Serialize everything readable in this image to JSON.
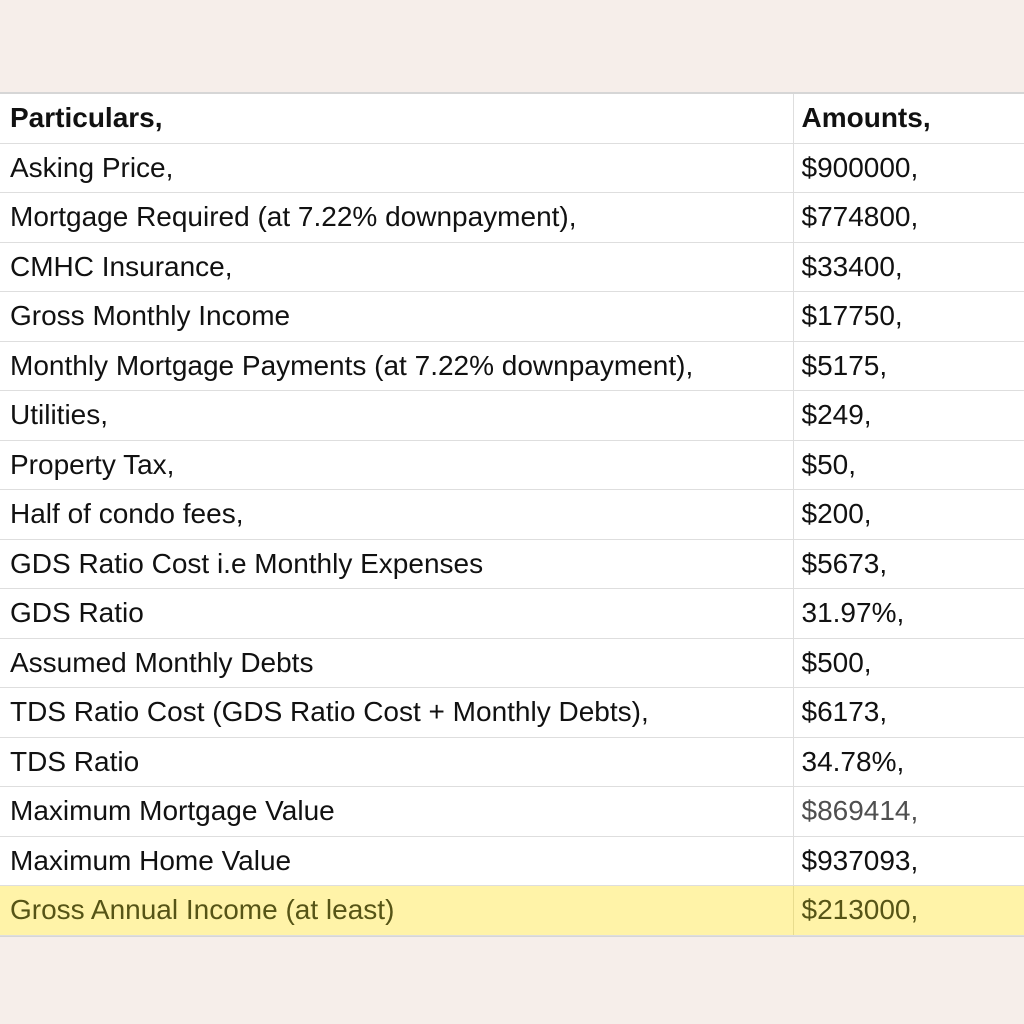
{
  "table": {
    "header": {
      "particulars": "Particulars,",
      "amounts": "Amounts,"
    },
    "rows": [
      {
        "particular": "Asking Price,",
        "amount": "$900000,"
      },
      {
        "particular": "Mortgage Required (at 7.22% downpayment),",
        "amount": "$774800,"
      },
      {
        "particular": "CMHC Insurance,",
        "amount": "$33400,"
      },
      {
        "particular": "Gross Monthly Income",
        "amount": "$17750,"
      },
      {
        "particular": "Monthly Mortgage Payments (at 7.22% downpayment),",
        "amount": "$5175,"
      },
      {
        "particular": "Utilities,",
        "amount": "$249,"
      },
      {
        "particular": "Property Tax,",
        "amount": "$50,"
      },
      {
        "particular": "Half of condo fees,",
        "amount": "$200,"
      },
      {
        "particular": "GDS Ratio Cost i.e Monthly Expenses",
        "amount": "$5673,"
      },
      {
        "particular": "GDS Ratio",
        "amount": "31.97%,"
      },
      {
        "particular": "Assumed Monthly Debts",
        "amount": "$500,"
      },
      {
        "particular": "TDS Ratio Cost (GDS Ratio Cost + Monthly Debts),",
        "amount": "$6173,"
      },
      {
        "particular": "TDS Ratio",
        "amount": "34.78%,"
      },
      {
        "particular": "Maximum Mortgage Value",
        "amount": "$869414,"
      },
      {
        "particular": "Maximum Home Value",
        "amount": "$937093,"
      },
      {
        "particular": "Gross Annual Income (at least)",
        "amount": "$213000,"
      }
    ],
    "highlight_color": "#fff3a8",
    "background_color": "#f6eeea"
  }
}
